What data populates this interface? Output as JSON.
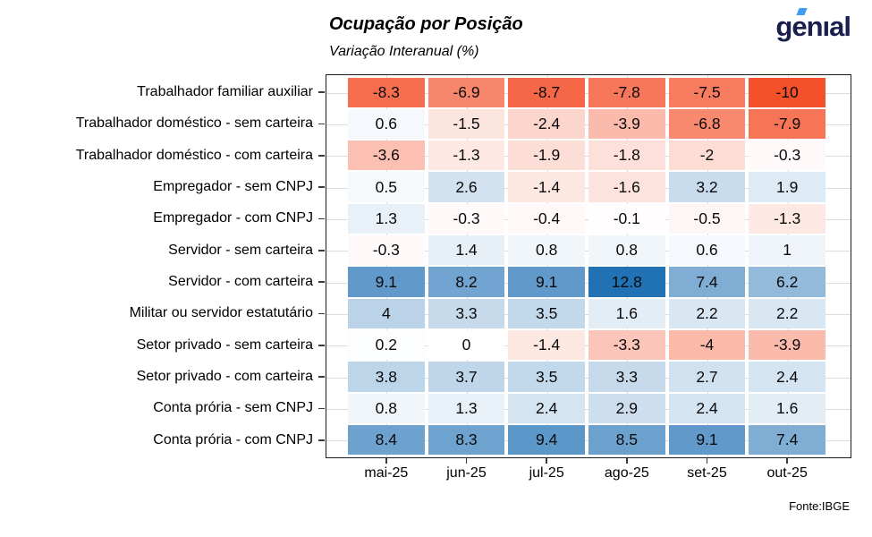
{
  "header": {
    "title": "Ocupação por Posição",
    "subtitle": "Variação Interanual (%)",
    "logo_text": "genıal",
    "source": "Fonte:IBGE"
  },
  "chart_data": {
    "type": "heatmap",
    "title": "Ocupação por Posição",
    "subtitle": "Variação Interanual (%)",
    "legend": "none",
    "grid": true,
    "columns": [
      "mai-25",
      "jun-25",
      "jul-25",
      "ago-25",
      "set-25",
      "out-25"
    ],
    "rows": [
      {
        "label": "Trabalhador familiar auxiliar",
        "values": [
          -8.3,
          -6.9,
          -8.7,
          -7.8,
          -7.5,
          -10
        ]
      },
      {
        "label": "Trabalhador doméstico - sem carteira",
        "values": [
          0.6,
          -1.5,
          -2.4,
          -3.9,
          -6.8,
          -7.9
        ]
      },
      {
        "label": "Trabalhador doméstico - com carteira",
        "values": [
          -3.6,
          -1.3,
          -1.9,
          -1.8,
          -2,
          -0.3
        ]
      },
      {
        "label": "Empregador - sem CNPJ",
        "values": [
          0.5,
          2.6,
          -1.4,
          -1.6,
          3.2,
          1.9
        ]
      },
      {
        "label": "Empregador - com CNPJ",
        "values": [
          1.3,
          -0.3,
          -0.4,
          -0.1,
          -0.5,
          -1.3
        ]
      },
      {
        "label": "Servidor - sem carteira",
        "values": [
          -0.3,
          1.4,
          0.8,
          0.8,
          0.6,
          1
        ]
      },
      {
        "label": "Servidor - com carteira",
        "values": [
          9.1,
          8.2,
          9.1,
          12.8,
          7.4,
          6.2
        ]
      },
      {
        "label": "Militar ou servidor estatutário",
        "values": [
          4,
          3.3,
          3.5,
          1.6,
          2.2,
          2.2
        ]
      },
      {
        "label": "Setor privado - sem carteira",
        "values": [
          0.2,
          0,
          -1.4,
          -3.3,
          -4,
          -3.9
        ]
      },
      {
        "label": "Setor privado - com carteira",
        "values": [
          3.8,
          3.7,
          3.5,
          3.3,
          2.7,
          2.4
        ]
      },
      {
        "label": "Conta prória - sem CNPJ",
        "values": [
          0.8,
          1.3,
          2.4,
          2.9,
          2.4,
          1.6
        ]
      },
      {
        "label": "Conta prória - com CNPJ",
        "values": [
          8.4,
          8.3,
          9.4,
          8.5,
          9.1,
          7.4
        ]
      }
    ],
    "colors": {
      "negative_max": "#F4502A",
      "midpoint": "#FFFFFF",
      "positive_max": "#2171B5",
      "domain": [
        -10,
        0,
        12.8
      ],
      "gridline": "#DCDCDC",
      "logo_navy": "#1A1F4E",
      "logo_blue": "#3E9DF2"
    }
  }
}
